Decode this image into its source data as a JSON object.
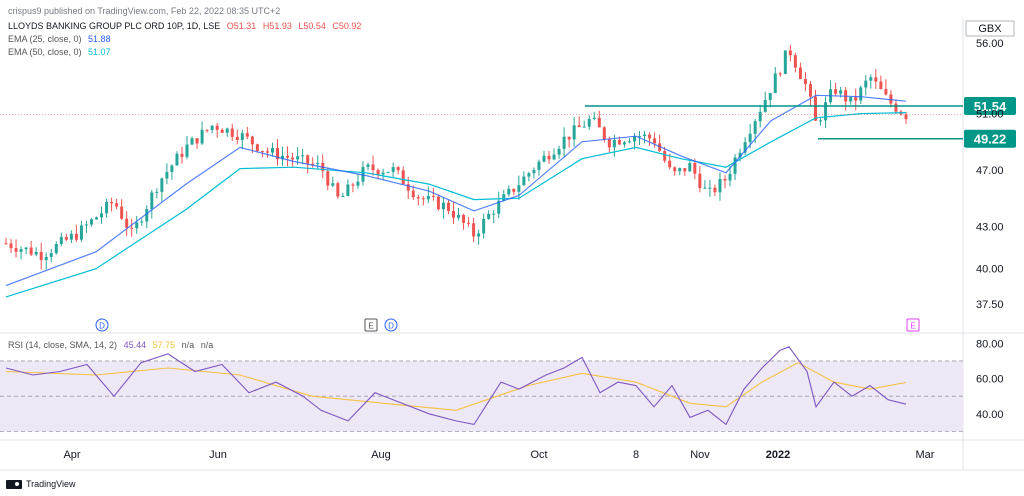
{
  "header": {
    "publisher": "crispus9 published on TradingView.com, Feb 22, 2022 08:35 UTC+2",
    "symbol": "LLOYDS BANKING GROUP PLC ORD 10P, 1D, LSE",
    "ohlc": {
      "o": "O51.31",
      "h": "H51.93",
      "l": "L50.54",
      "c": "C50.92"
    },
    "ema25_label": "EMA (25, close, 0)",
    "ema25_value": "51.88",
    "ema50_label": "EMA (50, close, 0)",
    "ema50_value": "51.07",
    "rsi_label": "RSI (14, close, SMA, 14, 2)",
    "rsi_value": "45.44",
    "rsi_sma_value": "57.75",
    "rsi_na1": "n/a",
    "rsi_na2": "n/a"
  },
  "currency": "GBX",
  "brand": "TradingView",
  "colors": {
    "up": "#26a69a",
    "down": "#ef5350",
    "ema25": "#2962ff",
    "ema50": "#00bcd4",
    "level": "#009688",
    "rsi": "#7e57c2",
    "rsi_sma": "#f5c242",
    "rsi_band": "#ede7f6"
  },
  "chart_data": [
    {
      "type": "candlestick",
      "x_ticks": [
        "Apr",
        "Jun",
        "Aug",
        "Oct",
        "8",
        "Nov",
        "2022",
        "Mar"
      ],
      "y_ticks": [
        "56.00",
        "51.00",
        "47.00",
        "43.00",
        "40.00",
        "37.50"
      ],
      "ylim": [
        36.5,
        57.5
      ],
      "price_labels": [
        {
          "value": "51.54"
        },
        {
          "value": "49.22"
        }
      ],
      "events": [
        {
          "label": "D",
          "at": "Apr"
        },
        {
          "label": "E",
          "at": "Aug"
        },
        {
          "label": "D",
          "at": "Aug"
        },
        {
          "label": "E",
          "at": "Feb"
        }
      ],
      "close_path": [
        {
          "x": 0,
          "y": 41.8
        },
        {
          "x": 0.04,
          "y": 41.0
        },
        {
          "x": 0.08,
          "y": 42.5
        },
        {
          "x": 0.12,
          "y": 44.8
        },
        {
          "x": 0.14,
          "y": 42.4
        },
        {
          "x": 0.17,
          "y": 46.2
        },
        {
          "x": 0.2,
          "y": 48.6
        },
        {
          "x": 0.23,
          "y": 50.2
        },
        {
          "x": 0.26,
          "y": 49.5
        },
        {
          "x": 0.29,
          "y": 48.3
        },
        {
          "x": 0.32,
          "y": 47.8
        },
        {
          "x": 0.35,
          "y": 47.2
        },
        {
          "x": 0.37,
          "y": 44.8
        },
        {
          "x": 0.4,
          "y": 47.1
        },
        {
          "x": 0.43,
          "y": 47.0
        },
        {
          "x": 0.46,
          "y": 45.0
        },
        {
          "x": 0.49,
          "y": 44.4
        },
        {
          "x": 0.52,
          "y": 42.4
        },
        {
          "x": 0.54,
          "y": 44.1
        },
        {
          "x": 0.56,
          "y": 45.4
        },
        {
          "x": 0.59,
          "y": 47.4
        },
        {
          "x": 0.62,
          "y": 49.2
        },
        {
          "x": 0.65,
          "y": 50.6
        },
        {
          "x": 0.67,
          "y": 49.0
        },
        {
          "x": 0.7,
          "y": 49.5
        },
        {
          "x": 0.72,
          "y": 49.2
        },
        {
          "x": 0.74,
          "y": 46.6
        },
        {
          "x": 0.76,
          "y": 47.3
        },
        {
          "x": 0.78,
          "y": 45.2
        },
        {
          "x": 0.8,
          "y": 46.4
        },
        {
          "x": 0.82,
          "y": 49.2
        },
        {
          "x": 0.84,
          "y": 51.6
        },
        {
          "x": 0.86,
          "y": 54.2
        },
        {
          "x": 0.87,
          "y": 55.6
        },
        {
          "x": 0.89,
          "y": 52.8
        },
        {
          "x": 0.9,
          "y": 50.2
        },
        {
          "x": 0.92,
          "y": 52.8
        },
        {
          "x": 0.94,
          "y": 51.7
        },
        {
          "x": 0.96,
          "y": 53.6
        },
        {
          "x": 0.98,
          "y": 51.9
        },
        {
          "x": 1.0,
          "y": 50.9
        }
      ],
      "ema25_path": [
        {
          "x": 0,
          "y": 38.8
        },
        {
          "x": 0.1,
          "y": 41.2
        },
        {
          "x": 0.2,
          "y": 46.0
        },
        {
          "x": 0.26,
          "y": 48.6
        },
        {
          "x": 0.32,
          "y": 47.6
        },
        {
          "x": 0.4,
          "y": 46.6
        },
        {
          "x": 0.47,
          "y": 45.5
        },
        {
          "x": 0.52,
          "y": 44.1
        },
        {
          "x": 0.57,
          "y": 45.2
        },
        {
          "x": 0.64,
          "y": 49.0
        },
        {
          "x": 0.7,
          "y": 49.4
        },
        {
          "x": 0.75,
          "y": 48.0
        },
        {
          "x": 0.8,
          "y": 46.8
        },
        {
          "x": 0.85,
          "y": 50.5
        },
        {
          "x": 0.9,
          "y": 52.3
        },
        {
          "x": 0.95,
          "y": 52.2
        },
        {
          "x": 1.0,
          "y": 51.88
        }
      ],
      "ema50_path": [
        {
          "x": 0,
          "y": 38.0
        },
        {
          "x": 0.1,
          "y": 40.0
        },
        {
          "x": 0.2,
          "y": 44.2
        },
        {
          "x": 0.26,
          "y": 47.1
        },
        {
          "x": 0.32,
          "y": 47.2
        },
        {
          "x": 0.4,
          "y": 46.8
        },
        {
          "x": 0.47,
          "y": 46.0
        },
        {
          "x": 0.52,
          "y": 44.9
        },
        {
          "x": 0.57,
          "y": 45.0
        },
        {
          "x": 0.64,
          "y": 47.8
        },
        {
          "x": 0.7,
          "y": 48.6
        },
        {
          "x": 0.75,
          "y": 47.8
        },
        {
          "x": 0.8,
          "y": 47.2
        },
        {
          "x": 0.85,
          "y": 49.0
        },
        {
          "x": 0.9,
          "y": 50.7
        },
        {
          "x": 0.95,
          "y": 51.0
        },
        {
          "x": 1.0,
          "y": 51.07
        }
      ]
    },
    {
      "type": "line",
      "title": "RSI",
      "y_ticks": [
        "80.00",
        "60.00",
        "40.00"
      ],
      "ylim": [
        28,
        83
      ],
      "band": [
        30,
        70
      ],
      "rsi_path": [
        {
          "x": 0,
          "y": 66
        },
        {
          "x": 0.03,
          "y": 62
        },
        {
          "x": 0.06,
          "y": 64
        },
        {
          "x": 0.09,
          "y": 68
        },
        {
          "x": 0.12,
          "y": 50
        },
        {
          "x": 0.15,
          "y": 69
        },
        {
          "x": 0.18,
          "y": 74
        },
        {
          "x": 0.21,
          "y": 64
        },
        {
          "x": 0.24,
          "y": 68
        },
        {
          "x": 0.27,
          "y": 52
        },
        {
          "x": 0.3,
          "y": 58
        },
        {
          "x": 0.33,
          "y": 50
        },
        {
          "x": 0.35,
          "y": 42
        },
        {
          "x": 0.38,
          "y": 36
        },
        {
          "x": 0.41,
          "y": 52
        },
        {
          "x": 0.44,
          "y": 46
        },
        {
          "x": 0.47,
          "y": 40
        },
        {
          "x": 0.5,
          "y": 36
        },
        {
          "x": 0.52,
          "y": 34
        },
        {
          "x": 0.55,
          "y": 58
        },
        {
          "x": 0.57,
          "y": 54
        },
        {
          "x": 0.6,
          "y": 62
        },
        {
          "x": 0.62,
          "y": 66
        },
        {
          "x": 0.64,
          "y": 72
        },
        {
          "x": 0.66,
          "y": 52
        },
        {
          "x": 0.68,
          "y": 58
        },
        {
          "x": 0.7,
          "y": 56
        },
        {
          "x": 0.72,
          "y": 44
        },
        {
          "x": 0.74,
          "y": 56
        },
        {
          "x": 0.76,
          "y": 38
        },
        {
          "x": 0.78,
          "y": 42
        },
        {
          "x": 0.8,
          "y": 34
        },
        {
          "x": 0.82,
          "y": 54
        },
        {
          "x": 0.84,
          "y": 66
        },
        {
          "x": 0.86,
          "y": 76
        },
        {
          "x": 0.87,
          "y": 78
        },
        {
          "x": 0.89,
          "y": 64
        },
        {
          "x": 0.9,
          "y": 44
        },
        {
          "x": 0.92,
          "y": 58
        },
        {
          "x": 0.94,
          "y": 50
        },
        {
          "x": 0.96,
          "y": 56
        },
        {
          "x": 0.98,
          "y": 48
        },
        {
          "x": 1.0,
          "y": 45.44
        }
      ],
      "sma_path": [
        {
          "x": 0,
          "y": 64
        },
        {
          "x": 0.1,
          "y": 62
        },
        {
          "x": 0.18,
          "y": 66
        },
        {
          "x": 0.26,
          "y": 62
        },
        {
          "x": 0.34,
          "y": 50
        },
        {
          "x": 0.42,
          "y": 46
        },
        {
          "x": 0.5,
          "y": 42
        },
        {
          "x": 0.58,
          "y": 56
        },
        {
          "x": 0.64,
          "y": 63
        },
        {
          "x": 0.7,
          "y": 58
        },
        {
          "x": 0.76,
          "y": 46
        },
        {
          "x": 0.8,
          "y": 44
        },
        {
          "x": 0.84,
          "y": 58
        },
        {
          "x": 0.88,
          "y": 69
        },
        {
          "x": 0.92,
          "y": 58
        },
        {
          "x": 0.96,
          "y": 54
        },
        {
          "x": 1.0,
          "y": 57.75
        }
      ]
    }
  ]
}
